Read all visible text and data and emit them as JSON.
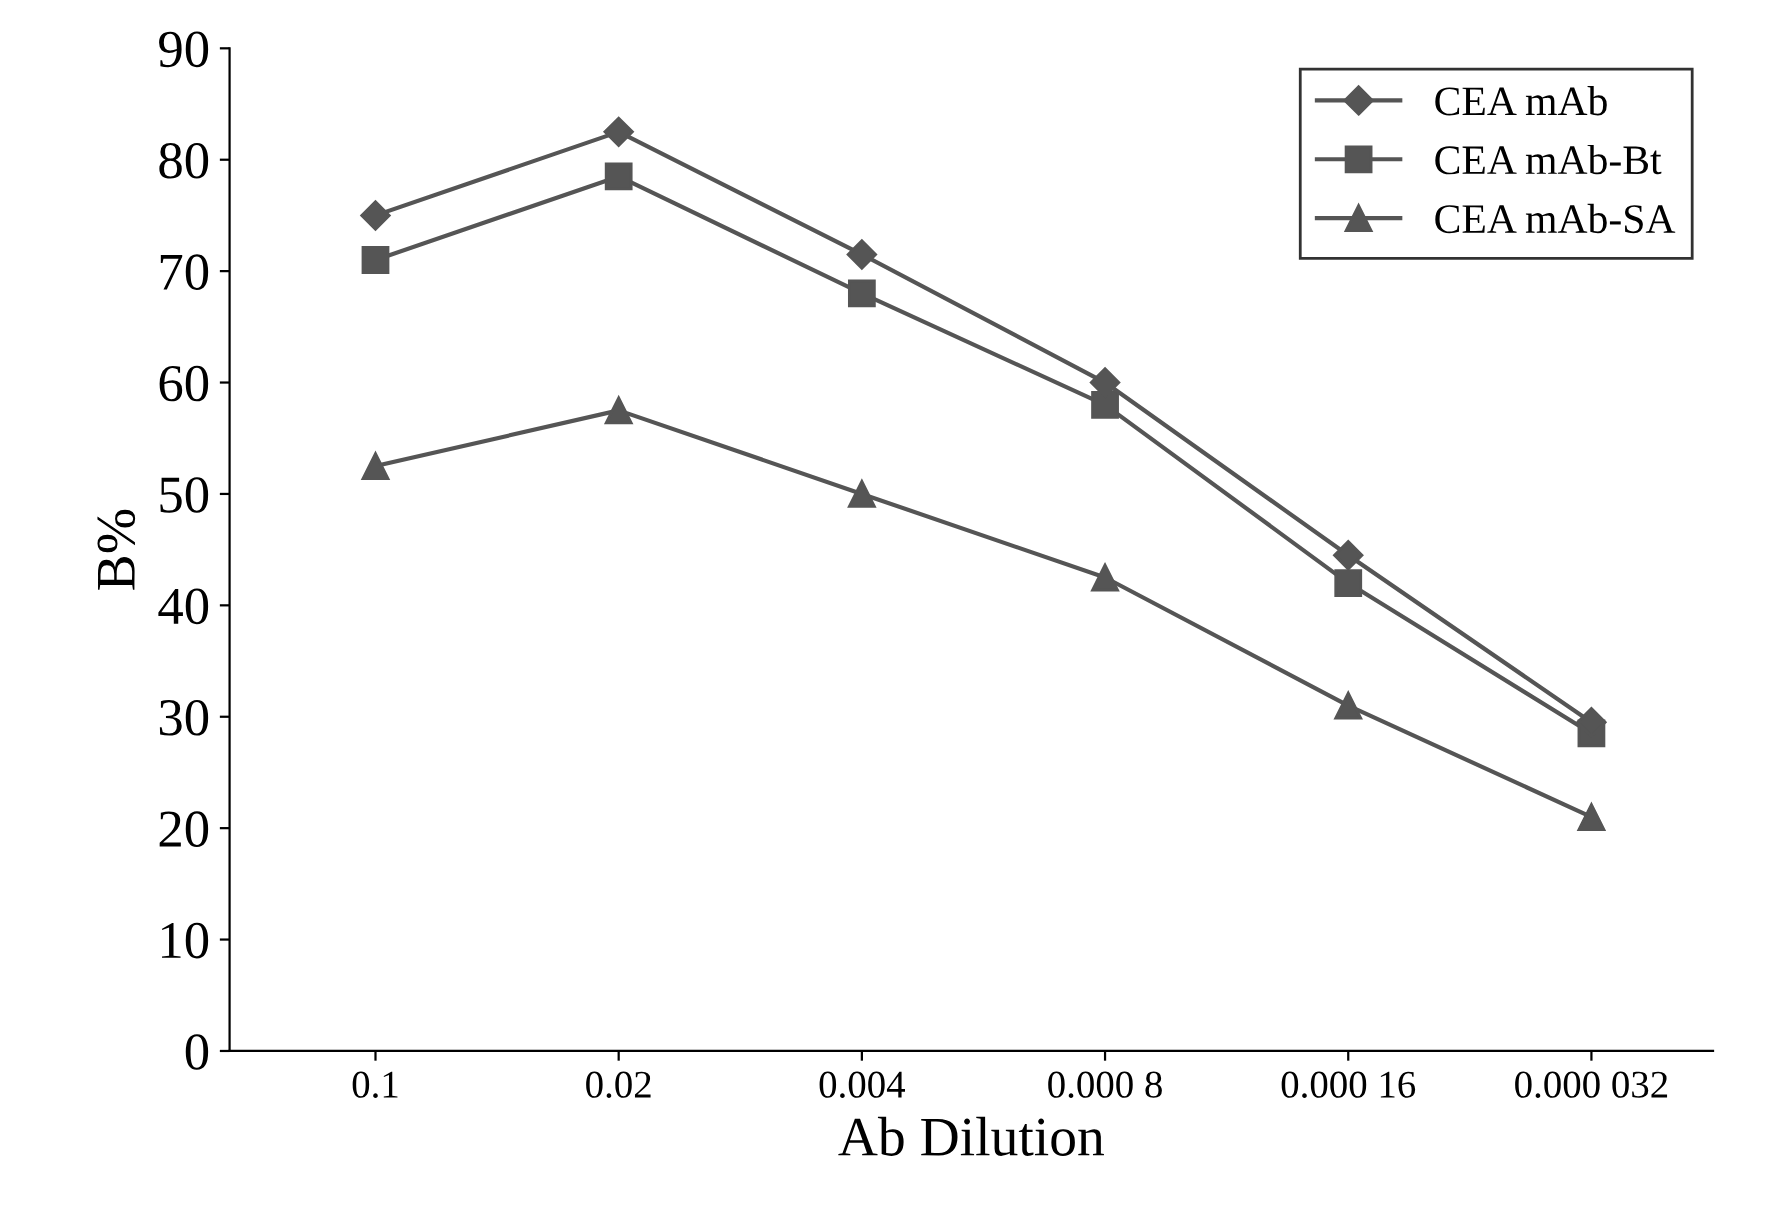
{
  "chart_data": {
    "type": "line",
    "xlabel": "Ab Dilution",
    "ylabel": "B%",
    "categories": [
      "0.1",
      "0.02",
      "0.004",
      "0.000 8",
      "0.000 16",
      "0.000 032"
    ],
    "series": [
      {
        "name": "CEA mAb",
        "color": "#555555",
        "marker": "diamond",
        "values": [
          75,
          82.5,
          71.5,
          60,
          44.5,
          29.5
        ]
      },
      {
        "name": "CEA mAb-Bt",
        "color": "#555555",
        "marker": "square",
        "values": [
          71,
          78.5,
          68,
          58,
          42,
          28.5
        ]
      },
      {
        "name": "CEA mAb-SA",
        "color": "#555555",
        "marker": "triangle",
        "values": [
          52.5,
          57.5,
          50,
          42.5,
          31,
          21
        ]
      }
    ],
    "ylim": [
      0,
      90
    ],
    "yticks": [
      0,
      10,
      20,
      30,
      40,
      50,
      60,
      70,
      80,
      90
    ],
    "legend": "top right",
    "grid": false,
    "line_style": "solid"
  }
}
